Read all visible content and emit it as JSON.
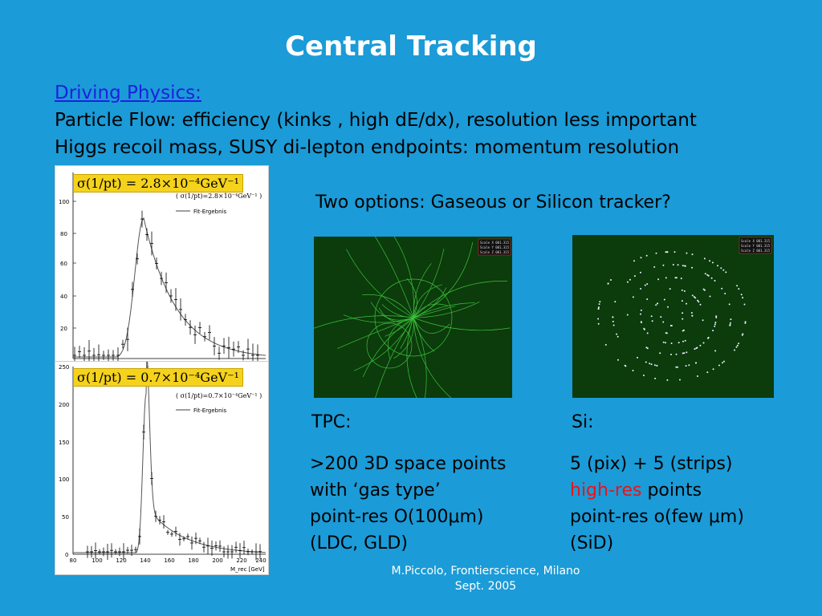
{
  "title": "Central Tracking",
  "driving_label": "Driving Physics:",
  "particle_flow": "Particle Flow: efficiency (kinks , high dE/dx), resolution  less important",
  "higgs_recoil": "Higgs recoil mass, SUSY di-lepton endpoints: momentum resolution",
  "options_question": "Two options: Gaseous or Silicon tracker?",
  "plots": {
    "top": {
      "formula": "σ(1/pt) = 2.8×10⁻⁴GeV⁻¹",
      "legend_line1": "( σ(1/pt)=2.8×10⁻⁴GeV⁻¹ )",
      "legend_line2": "Fit-Ergebnis",
      "y_ticks": [
        "100",
        "80",
        "60",
        "40",
        "20"
      ]
    },
    "bottom": {
      "formula": "σ(1/pt) = 0.7×10⁻⁴GeV⁻¹",
      "legend_line1": "( σ(1/pt)=0.7×10⁻⁴GeV⁻¹ )",
      "legend_line2": "Fit-Ergebnis",
      "y_ticks": [
        "250",
        "200",
        "150",
        "100",
        "50",
        "0"
      ],
      "x_ticks": [
        "80",
        "100",
        "120",
        "140",
        "160",
        "180",
        "200",
        "220",
        "240"
      ],
      "x_label": "M_rec [GeV]"
    }
  },
  "event_displays": {
    "tpc_readout": [
      "Scale X  001.315",
      "Scale Y  001.315",
      "Scale Z  001.315"
    ],
    "si_readout": [
      "Scale X  001.315",
      "Scale Y  001.315",
      "Scale Z  001.315"
    ]
  },
  "tpc": {
    "heading": "TPC:",
    "lines": [
      ">200 3D space points",
      "with ‘gas type’",
      "point-res O(100μm)",
      "(LDC, GLD)"
    ]
  },
  "si": {
    "heading": "Si:",
    "line1": "5 (pix) + 5 (strips)",
    "line2_red": "high-res",
    "line2_rest": " points",
    "line3": "point-res o(few μm)",
    "line4": "(SiD)"
  },
  "footer": {
    "line1": "M.Piccolo, Frontierscience, Milano",
    "line2": "Sept. 2005"
  }
}
